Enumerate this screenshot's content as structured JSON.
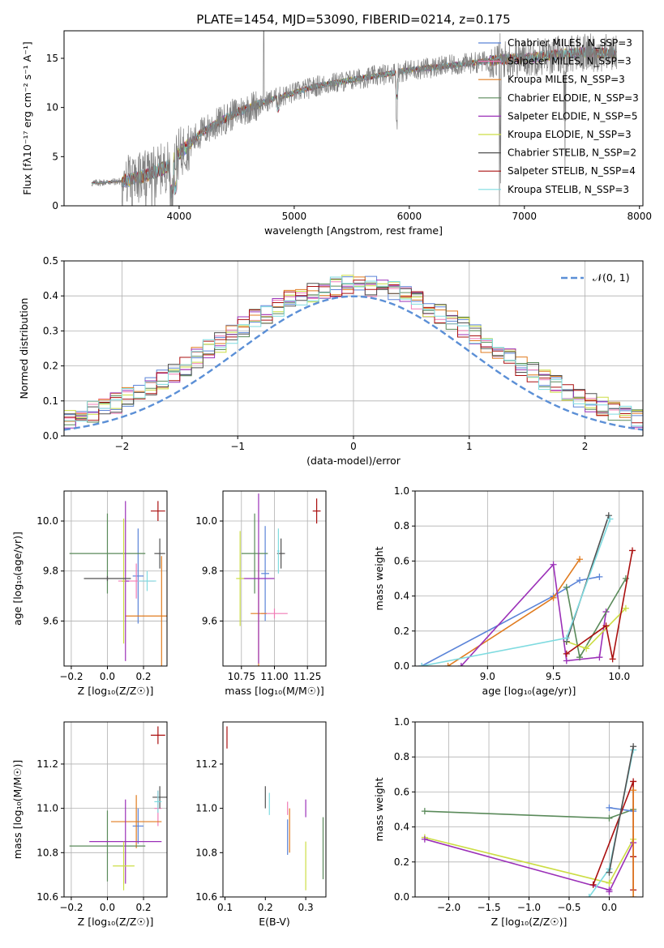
{
  "figure": {
    "title": "PLATE=1454, MJD=53090, FIBERID=0214, z=0.175"
  },
  "colors": {
    "chabrier_miles": "#5b84d8",
    "salpeter_miles": "#f07cb6",
    "kroupa_miles": "#e07b1f",
    "chabrier_elodie": "#5a8a5a",
    "salpeter_elodie": "#9b30b8",
    "kroupa_elodie": "#ccdd44",
    "chabrier_stelib": "#505050",
    "salpeter_stelib": "#aa1010",
    "kroupa_stelib": "#7fdbe0",
    "gaussian": "#5b8fd6",
    "grid": "#b0b0b0"
  },
  "chart_data": [
    {
      "id": "spectrum",
      "type": "line",
      "xlabel": "wavelength [Angstrom, rest frame]",
      "ylabel": "Flux [fλ10⁻¹⁷ erg cm⁻² s⁻¹ A⁻¹]",
      "xlim": [
        3000,
        8030
      ],
      "ylim": [
        0,
        17.8
      ],
      "xticks": [
        4000,
        5000,
        6000,
        7000,
        8000
      ],
      "yticks": [
        0,
        5,
        10,
        15
      ],
      "xtick_labels": [
        "4000",
        "5000",
        "6000",
        "7000",
        "8000"
      ],
      "ytick_labels": [
        "0",
        "5",
        "10",
        "15"
      ],
      "grid": false,
      "legend_position": "top-right",
      "legend": [
        "Chabrier MILES, N_SSP=3",
        "Salpeter MILES, N_SSP=3",
        "Kroupa MILES, N_SSP=3",
        "Chabrier ELODIE, N_SSP=3",
        "Salpeter ELODIE, N_SSP=5",
        "Kroupa ELODIE, N_SSP=3",
        "Chabrier STELIB, N_SSP=2",
        "Salpeter STELIB, N_SSP=4",
        "Kroupa STELIB, N_SSP=3"
      ],
      "continuum": {
        "x": [
          3240,
          3500,
          3700,
          3900,
          4000,
          4200,
          4500,
          4800,
          5000,
          5200,
          5500,
          5800,
          6000,
          6300,
          6600,
          6800,
          7000,
          7300,
          7500,
          7800
        ],
        "y": [
          2.3,
          2.5,
          3.0,
          4.0,
          5.3,
          7.5,
          9.5,
          10.8,
          11.5,
          12.2,
          12.8,
          13.4,
          13.8,
          14.2,
          14.6,
          14.9,
          15.0,
          15.4,
          15.6,
          15.5
        ]
      }
    },
    {
      "id": "residuals",
      "type": "histogram",
      "xlabel": "(data-model)/error",
      "ylabel": "Normed distribution",
      "xlim": [
        -2.5,
        2.5
      ],
      "ylim": [
        0,
        0.5
      ],
      "xticks": [
        -2,
        -1,
        0,
        1,
        2
      ],
      "yticks": [
        0,
        0.1,
        0.2,
        0.3,
        0.4,
        0.5
      ],
      "xtick_labels": [
        "−2",
        "−1",
        "0",
        "1",
        "2"
      ],
      "ytick_labels": [
        "0.0",
        "0.1",
        "0.2",
        "0.3",
        "0.4",
        "0.5"
      ],
      "grid": true,
      "legend_position": "top-right",
      "legend": [
        "𝒩(0, 1)"
      ],
      "bin_width": 0.1
    },
    {
      "id": "age_vs_Z",
      "type": "scatter",
      "xlabel": "Z [log₁₀(Z/Z☉)]",
      "ylabel": "age  [log₁₀(age/yr)]",
      "xlim": [
        -0.24,
        0.33
      ],
      "ylim": [
        9.42,
        10.12
      ],
      "xticks": [
        -0.2,
        0,
        0.2
      ],
      "yticks": [
        9.6,
        9.8,
        10.0
      ],
      "xtick_labels": [
        "−0.2",
        "0.0",
        "0.2"
      ],
      "ytick_labels": [
        "9.6",
        "9.8",
        "10.0"
      ],
      "grid": true,
      "points": [
        {
          "s": "chabrier_miles",
          "x": 0.17,
          "y": 9.78,
          "xerr": 0.03,
          "yerr": 0.19
        },
        {
          "s": "salpeter_miles",
          "x": 0.16,
          "y": 9.76,
          "xerr": 0.1,
          "yerr": 0.07
        },
        {
          "s": "kroupa_miles",
          "x": 0.3,
          "y": 9.62,
          "xerr": 0.2,
          "yerr": 0.24
        },
        {
          "s": "chabrier_elodie",
          "x": 0.0,
          "y": 9.87,
          "xerr": 0.21,
          "yerr": 0.16
        },
        {
          "s": "salpeter_elodie",
          "x": 0.1,
          "y": 9.76,
          "xerr": 0.02,
          "yerr": 0.32
        },
        {
          "s": "kroupa_elodie",
          "x": 0.09,
          "y": 9.76,
          "xerr": 0.01,
          "yerr": 0.25
        },
        {
          "s": "chabrier_stelib",
          "x": 0.29,
          "y": 9.87,
          "xerr": 0.03,
          "yerr": 0.06
        },
        {
          "s": "salpeter_stelib",
          "x": 0.28,
          "y": 10.04,
          "xerr": 0.04,
          "yerr": 0.04
        },
        {
          "s": "kroupa_stelib",
          "x": 0.22,
          "y": 9.76,
          "xerr": 0.05,
          "yerr": 0.04
        },
        {
          "s": "chabrier_stelib",
          "x": 0.0,
          "y": 9.77,
          "xerr": 0.13,
          "yerr": 0.01
        }
      ]
    },
    {
      "id": "age_vs_mass",
      "type": "scatter",
      "xlabel": "mass [log₁₀(M/M☉)]",
      "ylabel": "",
      "xlim": [
        10.61,
        11.39
      ],
      "ylim": [
        9.42,
        10.12
      ],
      "xticks": [
        10.75,
        11.0,
        11.25
      ],
      "yticks": [
        9.6,
        9.8,
        10.0
      ],
      "xtick_labels": [
        "10.75",
        "11.00",
        "11.25"
      ],
      "ytick_labels": [
        "9.6",
        "9.8",
        "10.0"
      ],
      "grid": true,
      "points": [
        {
          "s": "chabrier_miles",
          "x": 10.93,
          "y": 9.79,
          "xerr": 0.03,
          "yerr": 0.19
        },
        {
          "s": "salpeter_miles",
          "x": 11.0,
          "y": 9.63,
          "xerr": 0.1,
          "yerr": 0.02
        },
        {
          "s": "kroupa_miles",
          "x": 10.88,
          "y": 9.63,
          "xerr": 0.06,
          "yerr": 0.24
        },
        {
          "s": "chabrier_elodie",
          "x": 10.85,
          "y": 9.87,
          "xerr": 0.1,
          "yerr": 0.16
        },
        {
          "s": "salpeter_elodie",
          "x": 10.88,
          "y": 9.77,
          "xerr": 0.12,
          "yerr": 0.34
        },
        {
          "s": "kroupa_elodie",
          "x": 10.74,
          "y": 9.77,
          "xerr": 0.03,
          "yerr": 0.19
        },
        {
          "s": "chabrier_stelib",
          "x": 11.05,
          "y": 9.87,
          "xerr": 0.03,
          "yerr": 0.06
        },
        {
          "s": "salpeter_stelib",
          "x": 11.32,
          "y": 10.04,
          "xerr": 0.03,
          "yerr": 0.05
        },
        {
          "s": "kroupa_stelib",
          "x": 11.03,
          "y": 9.88,
          "xerr": 0.01,
          "yerr": 0.09
        }
      ]
    },
    {
      "id": "weight_vs_age",
      "type": "line",
      "xlabel": "age  [log₁₀(age/yr)]",
      "ylabel": "mass weight",
      "xlim": [
        8.45,
        10.18
      ],
      "ylim": [
        0,
        1.0
      ],
      "xticks": [
        9.0,
        9.5,
        10.0
      ],
      "yticks": [
        0,
        0.2,
        0.4,
        0.6,
        0.8,
        1.0
      ],
      "xtick_labels": [
        "9.0",
        "9.5",
        "10.0"
      ],
      "ytick_labels": [
        "0.0",
        "0.2",
        "0.4",
        "0.6",
        "0.8",
        "1.0"
      ],
      "grid": true,
      "series": [
        {
          "s": "chabrier_miles",
          "x": [
            8.5,
            9.5,
            9.7,
            9.85
          ],
          "y": [
            0.0,
            0.4,
            0.49,
            0.51
          ]
        },
        {
          "s": "kroupa_miles",
          "x": [
            8.7,
            9.5,
            9.7
          ],
          "y": [
            0.0,
            0.39,
            0.61
          ]
        },
        {
          "s": "salpeter_elodie",
          "x": [
            8.8,
            9.5,
            9.6,
            9.85,
            9.9
          ],
          "y": [
            0.0,
            0.58,
            0.03,
            0.05,
            0.31
          ]
        },
        {
          "s": "chabrier_elodie",
          "x": [
            9.6,
            9.7,
            10.05
          ],
          "y": [
            0.45,
            0.05,
            0.5
          ]
        },
        {
          "s": "kroupa_elodie",
          "x": [
            9.6,
            9.75,
            10.05
          ],
          "y": [
            0.14,
            0.1,
            0.33
          ]
        },
        {
          "s": "salpeter_stelib",
          "x": [
            9.6,
            9.9,
            9.95,
            10.1
          ],
          "y": [
            0.07,
            0.23,
            0.04,
            0.66
          ]
        },
        {
          "s": "chabrier_stelib",
          "x": [
            9.6,
            9.92
          ],
          "y": [
            0.14,
            0.86
          ]
        },
        {
          "s": "kroupa_stelib",
          "x": [
            8.5,
            9.6,
            9.93
          ],
          "y": [
            0.0,
            0.16,
            0.84
          ]
        }
      ]
    },
    {
      "id": "mass_vs_Z",
      "type": "scatter",
      "xlabel": "Z [log₁₀(Z/Z☉)]",
      "ylabel": "mass [log₁₀(M/M☉)]",
      "xlim": [
        -0.24,
        0.33
      ],
      "ylim": [
        10.6,
        11.39
      ],
      "xticks": [
        -0.2,
        0,
        0.2
      ],
      "yticks": [
        10.6,
        10.8,
        11.0,
        11.2
      ],
      "xtick_labels": [
        "−0.2",
        "0.0",
        "0.2"
      ],
      "ytick_labels": [
        "10.6",
        "10.8",
        "11.0",
        "11.2"
      ],
      "grid": true,
      "points": [
        {
          "s": "chabrier_miles",
          "x": 0.17,
          "y": 10.92,
          "xerr": 0.03,
          "yerr": 0.08
        },
        {
          "s": "salpeter_miles",
          "x": 0.28,
          "y": 11.0,
          "xerr": 0.02,
          "yerr": 0.08
        },
        {
          "s": "kroupa_miles",
          "x": 0.16,
          "y": 10.94,
          "xerr": 0.14,
          "yerr": 0.12
        },
        {
          "s": "chabrier_elodie",
          "x": 0.0,
          "y": 10.83,
          "xerr": 0.21,
          "yerr": 0.16
        },
        {
          "s": "salpeter_elodie",
          "x": 0.1,
          "y": 10.85,
          "xerr": 0.2,
          "yerr": 0.19
        },
        {
          "s": "kroupa_elodie",
          "x": 0.09,
          "y": 10.74,
          "xerr": 0.06,
          "yerr": 0.11
        },
        {
          "s": "chabrier_stelib",
          "x": 0.29,
          "y": 11.05,
          "xerr": 0.04,
          "yerr": 0.05
        },
        {
          "s": "salpeter_stelib",
          "x": 0.28,
          "y": 11.33,
          "xerr": 0.04,
          "yerr": 0.04
        },
        {
          "s": "kroupa_stelib",
          "x": 0.28,
          "y": 11.03,
          "xerr": 0.02,
          "yerr": 0.05
        }
      ]
    },
    {
      "id": "mass_vs_ebv",
      "type": "scatter",
      "xlabel": "E(B-V)",
      "ylabel": "",
      "xlim": [
        0.095,
        0.35
      ],
      "ylim": [
        10.6,
        11.39
      ],
      "xticks": [
        0.1,
        0.2,
        0.3
      ],
      "yticks": [
        10.6,
        10.8,
        11.0,
        11.2
      ],
      "xtick_labels": [
        "0.1",
        "0.2",
        "0.3"
      ],
      "ytick_labels": [
        "10.6",
        "10.8",
        "11.0",
        "11.2"
      ],
      "grid": false,
      "points": [
        {
          "s": "salpeter_stelib",
          "x": 0.105,
          "y": 11.32,
          "xerr": 0.0,
          "yerr": 0.05
        },
        {
          "s": "chabrier_stelib",
          "x": 0.2,
          "y": 11.05,
          "xerr": 0.0,
          "yerr": 0.05
        },
        {
          "s": "kroupa_stelib",
          "x": 0.21,
          "y": 11.02,
          "xerr": 0.0,
          "yerr": 0.05
        },
        {
          "s": "chabrier_miles",
          "x": 0.255,
          "y": 10.87,
          "xerr": 0.0,
          "yerr": 0.08
        },
        {
          "s": "salpeter_miles",
          "x": 0.255,
          "y": 11.0,
          "xerr": 0.0,
          "yerr": 0.03
        },
        {
          "s": "kroupa_miles",
          "x": 0.26,
          "y": 10.9,
          "xerr": 0.0,
          "yerr": 0.1
        },
        {
          "s": "salpeter_elodie",
          "x": 0.3,
          "y": 11.0,
          "xerr": 0.0,
          "yerr": 0.04
        },
        {
          "s": "kroupa_elodie",
          "x": 0.3,
          "y": 10.74,
          "xerr": 0.0,
          "yerr": 0.11
        },
        {
          "s": "chabrier_elodie",
          "x": 0.343,
          "y": 10.82,
          "xerr": 0.0,
          "yerr": 0.14
        }
      ]
    },
    {
      "id": "weight_vs_Z",
      "type": "line",
      "xlabel": "Z [log₁₀(Z/Z☉)]",
      "ylabel": "mass weight",
      "xlim": [
        -2.42,
        0.42
      ],
      "ylim": [
        0,
        1.0
      ],
      "xticks": [
        -2.0,
        -1.5,
        -1.0,
        -0.5,
        0.0
      ],
      "yticks": [
        0,
        0.2,
        0.4,
        0.6,
        0.8,
        1.0
      ],
      "xtick_labels": [
        "−2.0",
        "−1.5",
        "−1.0",
        "−0.5",
        "0.0"
      ],
      "ytick_labels": [
        "0.0",
        "0.2",
        "0.4",
        "0.6",
        "0.8",
        "1.0"
      ],
      "grid": true,
      "series": [
        {
          "s": "chabrier_elodie",
          "x": [
            -2.3,
            0.0,
            0.3
          ],
          "y": [
            0.49,
            0.45,
            0.5
          ]
        },
        {
          "s": "kroupa_elodie",
          "x": [
            -2.3,
            0.0,
            0.3
          ],
          "y": [
            0.34,
            0.08,
            0.33
          ]
        },
        {
          "s": "salpeter_elodie",
          "x": [
            -2.3,
            0.0,
            0.0,
            0.3
          ],
          "y": [
            0.33,
            0.04,
            0.03,
            0.31
          ]
        },
        {
          "s": "chabrier_miles",
          "x": [
            0.0,
            0.3
          ],
          "y": [
            0.51,
            0.49
          ]
        },
        {
          "s": "salpeter_stelib",
          "x": [
            -0.2,
            0.3,
            0.3,
            0.3
          ],
          "y": [
            0.07,
            0.66,
            0.23,
            0.04
          ]
        },
        {
          "s": "kroupa_stelib",
          "x": [
            -0.25,
            0.0,
            0.3
          ],
          "y": [
            0.0,
            0.16,
            0.84
          ]
        },
        {
          "s": "chabrier_stelib",
          "x": [
            0.0,
            0.3
          ],
          "y": [
            0.14,
            0.86
          ]
        },
        {
          "s": "kroupa_miles",
          "x": [
            0.3,
            0.3
          ],
          "y": [
            0.0,
            0.61
          ]
        }
      ]
    }
  ]
}
